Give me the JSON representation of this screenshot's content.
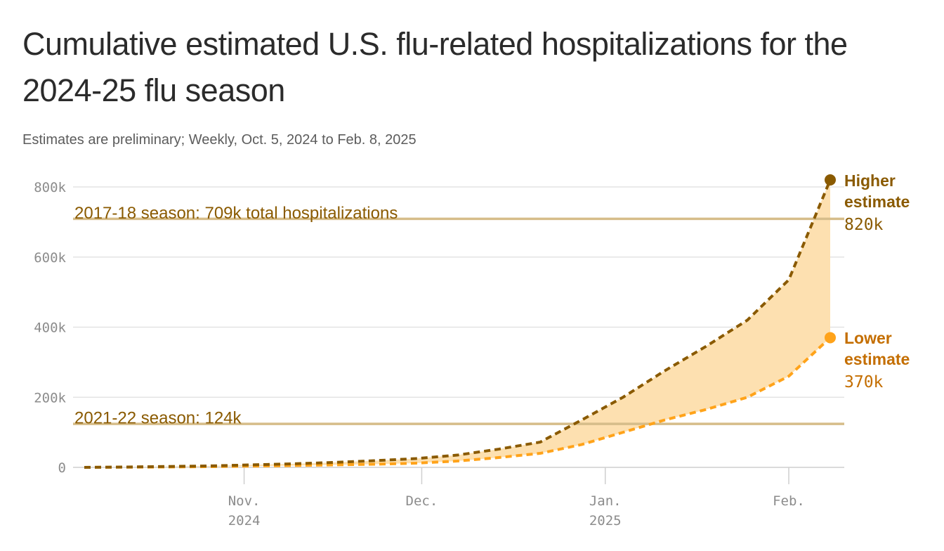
{
  "chart_data": {
    "type": "area",
    "title": "Cumulative estimated U.S. flu-related hospitalizations for the 2024-25 flu season",
    "subtitle": "Estimates are preliminary; Weekly, Oct. 5, 2024 to Feb. 8, 2025",
    "xlabel": "",
    "ylabel": "",
    "ylim": [
      0,
      800000
    ],
    "yticks": [
      {
        "value": 0,
        "label": "0"
      },
      {
        "value": 200000,
        "label": "200k"
      },
      {
        "value": 400000,
        "label": "400k"
      },
      {
        "value": 600000,
        "label": "600k"
      },
      {
        "value": 800000,
        "label": "800k"
      }
    ],
    "xlim": [
      "2024-10-05",
      "2025-02-08"
    ],
    "xticks": [
      {
        "date": "2024-11-01",
        "label": "Nov.",
        "sublabel": "2024"
      },
      {
        "date": "2024-12-01",
        "label": "Dec.",
        "sublabel": ""
      },
      {
        "date": "2025-01-01",
        "label": "Jan.",
        "sublabel": "2025"
      },
      {
        "date": "2025-02-01",
        "label": "Feb.",
        "sublabel": ""
      }
    ],
    "x": [
      "2024-10-05",
      "2024-10-12",
      "2024-10-19",
      "2024-10-26",
      "2024-11-02",
      "2024-11-09",
      "2024-11-16",
      "2024-11-23",
      "2024-11-30",
      "2024-12-07",
      "2024-12-14",
      "2024-12-21",
      "2024-12-28",
      "2025-01-04",
      "2025-01-11",
      "2025-01-18",
      "2025-01-25",
      "2025-02-01",
      "2025-02-08"
    ],
    "series": [
      {
        "name": "Higher estimate",
        "color": "#8a5a00",
        "end_label": "820k",
        "values": [
          0,
          1000,
          2500,
          4000,
          7000,
          10000,
          14000,
          19000,
          25000,
          35000,
          52000,
          72000,
          135000,
          200000,
          275000,
          345000,
          420000,
          535000,
          820000
        ]
      },
      {
        "name": "Lower estimate",
        "color": "#ffa31a",
        "end_label": "370k",
        "values": [
          0,
          500,
          1000,
          2000,
          3500,
          5000,
          7000,
          9000,
          12000,
          18000,
          28000,
          40000,
          65000,
          100000,
          135000,
          165000,
          200000,
          260000,
          370000
        ]
      }
    ],
    "reference_lines": [
      {
        "value": 709000,
        "label": "2017-18 season: 709k total hospitalizations"
      },
      {
        "value": 124000,
        "label": "2021-22 season: 124k"
      }
    ],
    "colors": {
      "band": "#fde0b0",
      "reference_line": "#d6bd8a",
      "reference_text": "#8a5a00",
      "grid": "#e3e3e3",
      "axis_text": "#8c8c8c",
      "higher": "#8a5a00",
      "lower": "#ffa31a",
      "lower_text": "#c46e00"
    },
    "grid": true,
    "legend": "direct labels at line ends (right)"
  }
}
